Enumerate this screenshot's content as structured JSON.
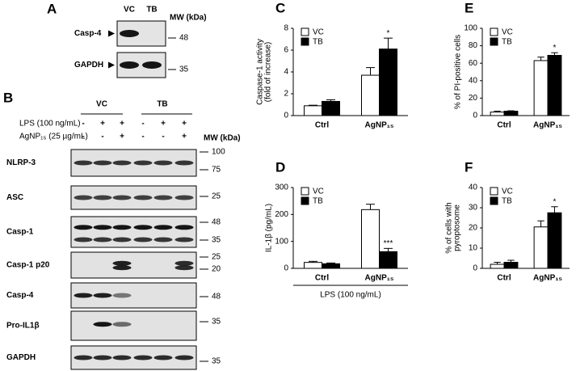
{
  "chart_data": [
    {
      "type": "bar",
      "label": "C",
      "ylabel": [
        "Caspase-1 activity",
        "(fold of increase)"
      ],
      "categories": [
        "Ctrl",
        "AgNP₁₅"
      ],
      "series": [
        {
          "name": "VC",
          "color": "#ffffff",
          "values": [
            0.9,
            3.7
          ],
          "errors": [
            0.05,
            0.7
          ]
        },
        {
          "name": "TB",
          "color": "#000000",
          "values": [
            1.3,
            6.1
          ],
          "errors": [
            0.15,
            1.0
          ],
          "significance": [
            null,
            "*"
          ]
        }
      ],
      "ylim": [
        0,
        8
      ],
      "yticks": [
        0,
        2,
        4,
        6,
        8
      ],
      "legend": "upper left"
    },
    {
      "type": "bar",
      "label": "D",
      "ylabel": [
        "IL-1β (pg/mL)"
      ],
      "xlabel": "LPS (100 ng/mL)",
      "categories": [
        "Ctrl",
        "AgNP₁₅"
      ],
      "series": [
        {
          "name": "VC",
          "color": "#ffffff",
          "values": [
            22,
            218
          ],
          "errors": [
            4,
            20
          ]
        },
        {
          "name": "TB",
          "color": "#000000",
          "values": [
            17,
            62
          ],
          "errors": [
            3,
            12
          ],
          "significance": [
            null,
            "***"
          ]
        }
      ],
      "ylim": [
        0,
        300
      ],
      "yticks": [
        0,
        100,
        200,
        300
      ],
      "legend": "upper left"
    },
    {
      "type": "bar",
      "label": "E",
      "ylabel": [
        "% of PI-positive cells"
      ],
      "categories": [
        "Ctrl",
        "AgNP₁₅"
      ],
      "series": [
        {
          "name": "VC",
          "color": "#ffffff",
          "values": [
            4,
            63
          ],
          "errors": [
            1,
            4
          ]
        },
        {
          "name": "TB",
          "color": "#000000",
          "values": [
            5,
            69
          ],
          "errors": [
            0.5,
            3
          ],
          "significance": [
            null,
            "*"
          ]
        }
      ],
      "ylim": [
        0,
        100
      ],
      "yticks": [
        0,
        20,
        40,
        60,
        80,
        100
      ],
      "legend": "upper left"
    },
    {
      "type": "bar",
      "label": "F",
      "ylabel": [
        "% of cells with",
        "pyroptosome"
      ],
      "categories": [
        "Ctrl",
        "AgNP₁₅"
      ],
      "series": [
        {
          "name": "VC",
          "color": "#ffffff",
          "values": [
            2,
            20.5
          ],
          "errors": [
            1,
            3
          ]
        },
        {
          "name": "TB",
          "color": "#000000",
          "values": [
            3,
            27.5
          ],
          "errors": [
            1,
            3
          ],
          "significance": [
            null,
            "*"
          ]
        }
      ],
      "ylim": [
        0,
        40
      ],
      "yticks": [
        0,
        10,
        20,
        30,
        40
      ],
      "legend": "upper left"
    }
  ],
  "blots": {
    "panel_a": {
      "label": "A",
      "columns": [
        "VC",
        "TB"
      ],
      "mw_title": "MW (kDa)",
      "rows": [
        {
          "name": "Casp-4",
          "mw": [
            "48"
          ]
        },
        {
          "name": "GAPDH",
          "mw": [
            "35"
          ]
        }
      ]
    },
    "panel_b": {
      "label": "B",
      "groups": [
        "VC",
        "TB"
      ],
      "mw_title": "MW (kDa)",
      "treatments": [
        {
          "name": "LPS (100 ng/mL)",
          "signs": [
            "-",
            "+",
            "+",
            "-",
            "+",
            "+"
          ]
        },
        {
          "name": "AgNP₁₅ (25 µg/mL)",
          "signs": [
            "-",
            "-",
            "+",
            "-",
            "-",
            "+"
          ]
        }
      ],
      "rows": [
        {
          "name": "NLRP-3",
          "mw": [
            "100",
            "75"
          ]
        },
        {
          "name": "ASC",
          "mw": [
            "25"
          ]
        },
        {
          "name": "Casp-1",
          "mw": [
            "48",
            "35"
          ]
        },
        {
          "name": "Casp-1 p20",
          "mw": [
            "25",
            "20"
          ]
        },
        {
          "name": "Casp-4",
          "mw": [
            "48"
          ]
        },
        {
          "name": "Pro-IL1β",
          "mw": [
            "35"
          ]
        },
        {
          "name": "GAPDH",
          "mw": [
            "35"
          ]
        }
      ]
    }
  }
}
